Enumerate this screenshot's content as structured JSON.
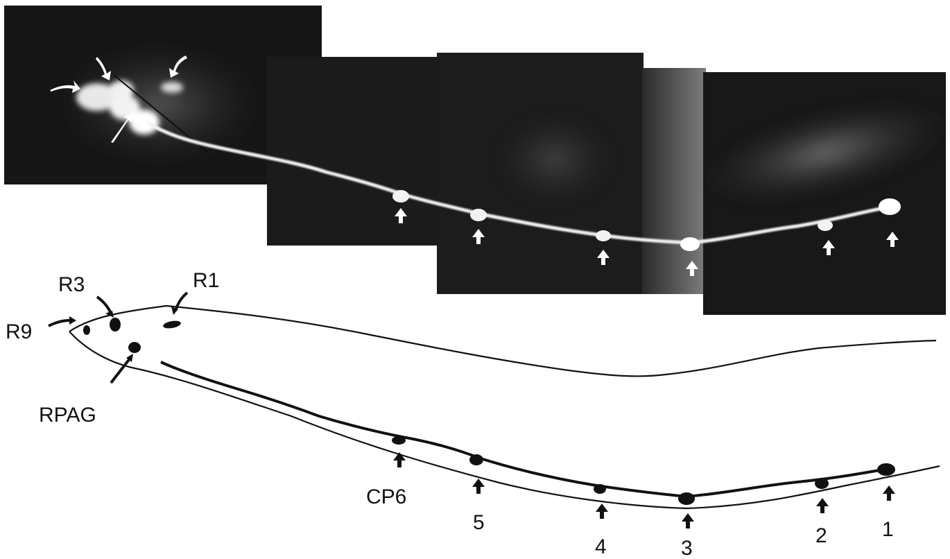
{
  "figure": {
    "labels": {
      "r3": "R3",
      "r1": "R1",
      "r9": "R9",
      "rpag": "RPAG",
      "cp6": "CP6",
      "n5": "5",
      "n4": "4",
      "n3": "3",
      "n2": "2",
      "n1": "1"
    },
    "colors": {
      "photo_background": "#151515",
      "fluorescence": "#f2f2f2",
      "ink": "#111111"
    }
  }
}
